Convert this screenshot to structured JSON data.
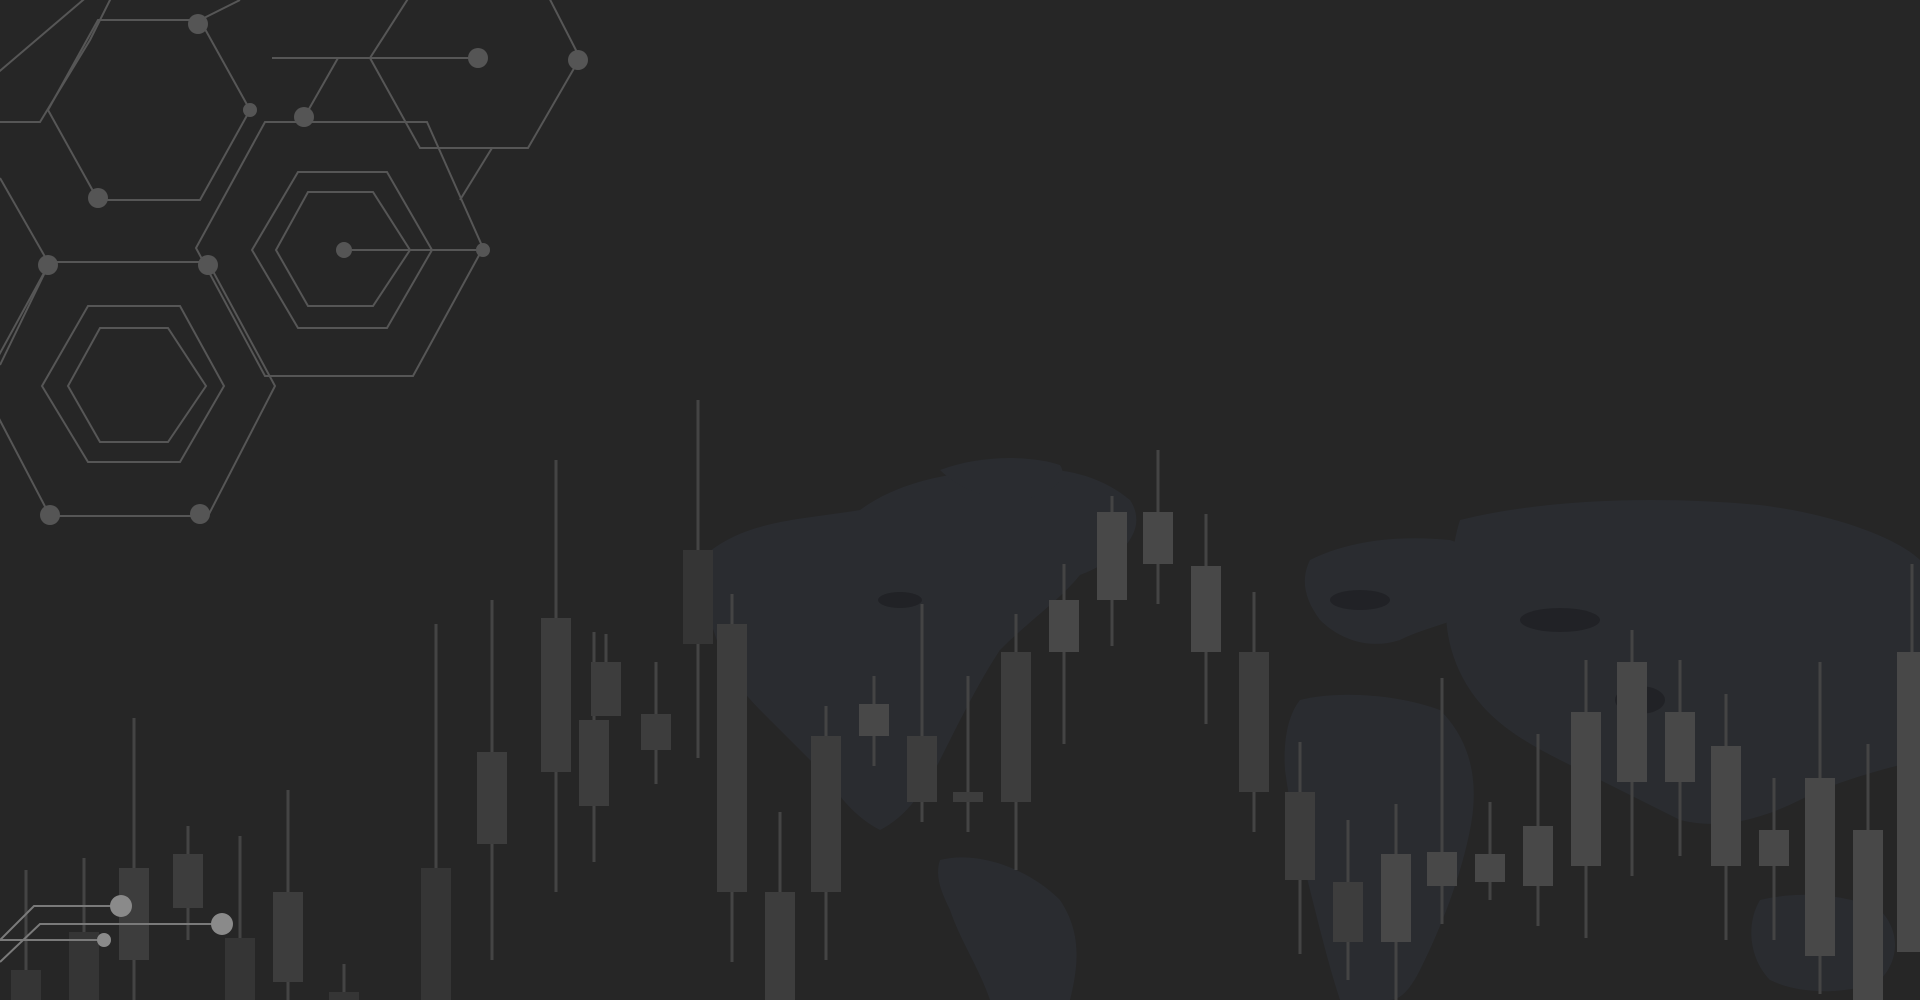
{
  "scene": {
    "description_kind": "decorative-background",
    "colors": {
      "background": "#262626",
      "hex_stroke": "#565656",
      "hex_node": "#555555",
      "map_land": "#2b2d31",
      "map_shadow": "#1f2124",
      "candle_dark": "#353535",
      "candle_mid": "#3d3d3d",
      "candle_light": "#464646",
      "wick": "#444444",
      "circuit": "#7a7a7a",
      "circuit_node": "#8a8a8a"
    },
    "icons": [
      "hexagon-network-graphic",
      "world-map-graphic",
      "candlestick-graphic",
      "circuit-lines-graphic"
    ]
  }
}
